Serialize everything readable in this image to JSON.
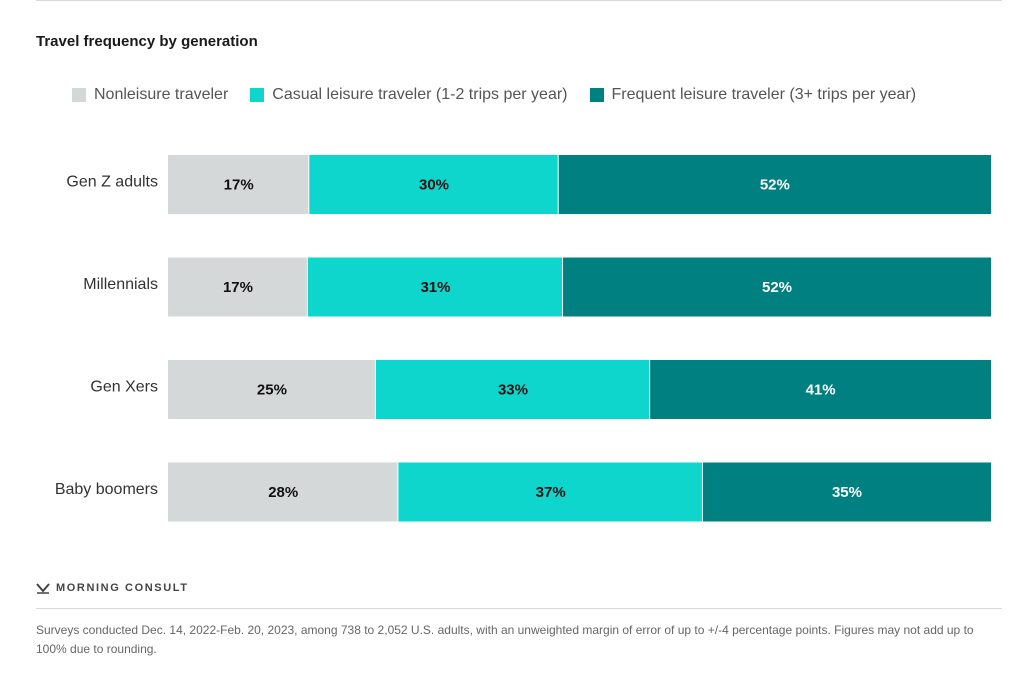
{
  "title": "Travel frequency by generation",
  "brand": "MORNING CONSULT",
  "footnote": "Surveys conducted Dec. 14, 2022-Feb. 20, 2023, among 738 to 2,052 U.S. adults, with an unweighted margin of error of up to +/-4 percentage points. Figures may not add up to 100% due to rounding.",
  "colors": {
    "nonleisure": "#d5d8d9",
    "casual": "#0fd6cc",
    "frequent": "#008080",
    "label_dark": "#111111",
    "label_light": "#ffffff"
  },
  "chart_data": {
    "type": "bar",
    "orientation": "horizontal",
    "stacked": true,
    "title": "Travel frequency by generation",
    "categories": [
      "Gen Z adults",
      "Millennials",
      "Gen Xers",
      "Baby boomers"
    ],
    "series": [
      {
        "name": "Nonleisure traveler",
        "color_key": "nonleisure",
        "values": [
          17,
          17,
          25,
          28
        ],
        "labels": [
          "17%",
          "17%",
          "25%",
          "28%"
        ]
      },
      {
        "name": "Casual leisure traveler (1-2 trips per year)",
        "color_key": "casual",
        "values": [
          30,
          31,
          33,
          37
        ],
        "labels": [
          "30%",
          "31%",
          "33%",
          "37%"
        ]
      },
      {
        "name": "Frequent leisure traveler (3+ trips per year)",
        "color_key": "frequent",
        "values": [
          52,
          52,
          41,
          35
        ],
        "labels": [
          "52%",
          "52%",
          "41%",
          "35%"
        ]
      }
    ],
    "legend": "top-left",
    "grid": false
  }
}
